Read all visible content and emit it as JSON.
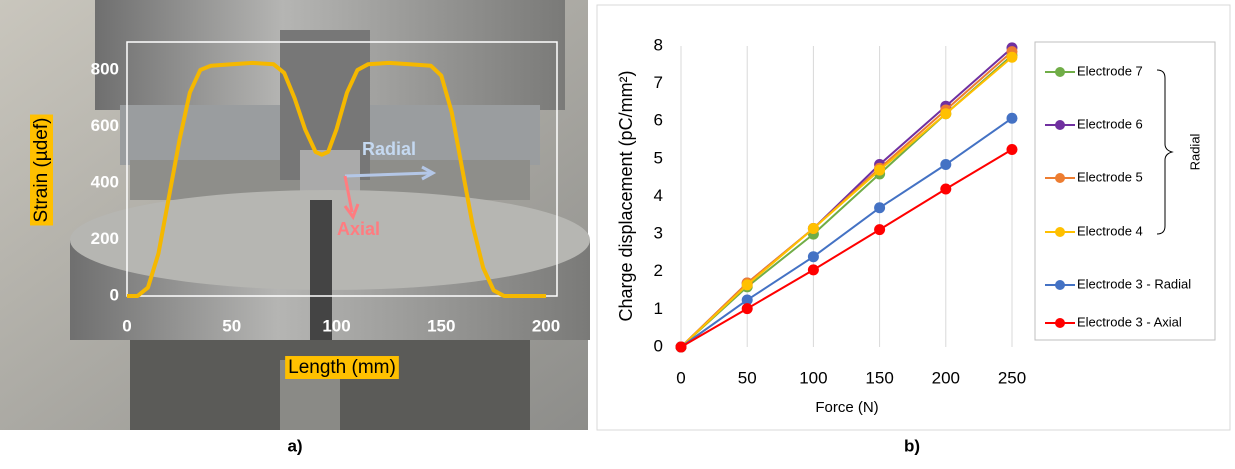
{
  "chart_data": [
    {
      "type": "line",
      "xlabel": "Length (mm)",
      "ylabel": "Strain (µdef)",
      "annotations": [
        "Radial",
        "Axial"
      ],
      "caption": "a)",
      "x": [
        0,
        5,
        10,
        15,
        20,
        25,
        30,
        35,
        40,
        50,
        60,
        70,
        75,
        80,
        85,
        90,
        93,
        96,
        100,
        105,
        110,
        115,
        125,
        135,
        145,
        150,
        155,
        160,
        165,
        170,
        175,
        180,
        190,
        200
      ],
      "series": [
        {
          "color": "#f5b800",
          "values": [
            0,
            0,
            30,
            150,
            350,
            550,
            720,
            800,
            815,
            820,
            825,
            820,
            790,
            700,
            590,
            510,
            500,
            510,
            590,
            720,
            800,
            820,
            825,
            820,
            815,
            780,
            650,
            450,
            250,
            100,
            20,
            0,
            0,
            0
          ]
        }
      ],
      "xlim": [
        0,
        205
      ],
      "ylim": [
        0,
        900
      ],
      "xticks": [
        0,
        50,
        100,
        150,
        200
      ],
      "yticks": [
        0,
        200,
        400,
        600,
        800
      ],
      "markers": false,
      "grid": false
    },
    {
      "type": "line",
      "xlabel": "Force (N)",
      "ylabel": "Charge displacement (pC/mm²)",
      "legend_group_label": "Radial",
      "caption": "b)",
      "x": [
        0,
        50,
        100,
        150,
        200,
        250
      ],
      "series": [
        {
          "name": "Electrode 7",
          "color": "#70ad47",
          "values": [
            0,
            1.6,
            3.0,
            4.6,
            6.2,
            7.75
          ]
        },
        {
          "name": "Electrode 6",
          "color": "#7030a0",
          "values": [
            0,
            1.7,
            3.15,
            4.85,
            6.4,
            7.95
          ]
        },
        {
          "name": "Electrode 5",
          "color": "#ed7d31",
          "values": [
            0,
            1.7,
            3.15,
            4.75,
            6.3,
            7.85
          ]
        },
        {
          "name": "Electrode 4",
          "color": "#ffc000",
          "values": [
            0,
            1.65,
            3.15,
            4.7,
            6.2,
            7.7
          ]
        },
        {
          "name": "Electrode 3 - Radial",
          "color": "#4472c4",
          "values": [
            0,
            1.25,
            2.4,
            3.7,
            4.85,
            6.08
          ]
        },
        {
          "name": "Electrode 3 - Axial",
          "color": "#ff0000",
          "values": [
            0,
            1.02,
            2.05,
            3.12,
            4.2,
            5.25
          ]
        }
      ],
      "xlim": [
        0,
        250
      ],
      "ylim": [
        0,
        8
      ],
      "xticks": [
        0,
        50,
        100,
        150,
        200,
        250
      ],
      "yticks": [
        0,
        1,
        2,
        3,
        4,
        5,
        6,
        7,
        8
      ],
      "markers": true,
      "grid": "x"
    }
  ]
}
